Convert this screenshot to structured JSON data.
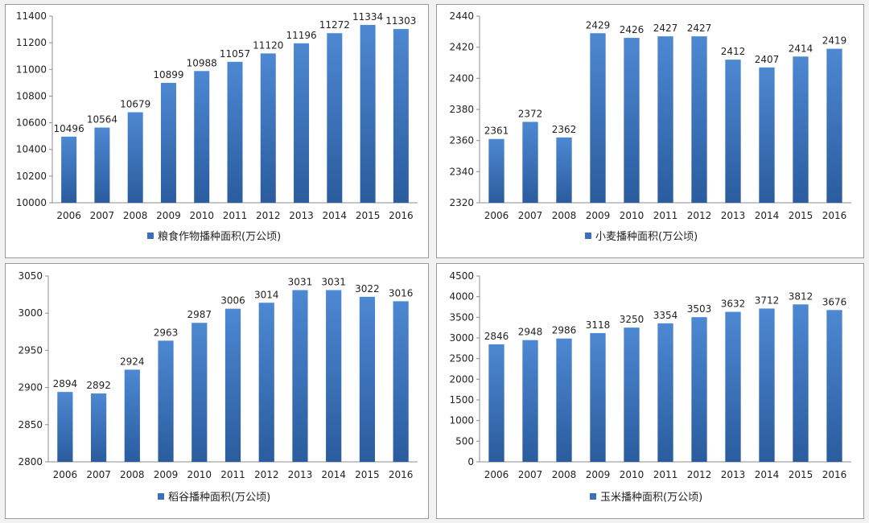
{
  "chart_data": [
    {
      "type": "bar",
      "title": "",
      "xlabel": "",
      "ylabel": "",
      "categories": [
        "2006",
        "2007",
        "2008",
        "2009",
        "2010",
        "2011",
        "2012",
        "2013",
        "2014",
        "2015",
        "2016"
      ],
      "series": [
        {
          "name": "粮食作物播种面积(万公顷)",
          "values": [
            10496,
            10564,
            10679,
            10899,
            10988,
            11057,
            11120,
            11196,
            11272,
            11334,
            11303
          ]
        }
      ],
      "ylim": [
        10000,
        11400
      ],
      "yticks": [
        10000,
        10200,
        10400,
        10600,
        10800,
        11000,
        11200,
        11400
      ],
      "grid": false,
      "legend": "bottom",
      "color": "#3a70b8"
    },
    {
      "type": "bar",
      "title": "",
      "xlabel": "",
      "ylabel": "",
      "categories": [
        "2006",
        "2007",
        "2008",
        "2009",
        "2010",
        "2011",
        "2012",
        "2013",
        "2014",
        "2015",
        "2016"
      ],
      "series": [
        {
          "name": "小麦播种面积(万公顷)",
          "values": [
            2361,
            2372,
            2362,
            2429,
            2426,
            2427,
            2427,
            2412,
            2407,
            2414,
            2419
          ]
        }
      ],
      "ylim": [
        2320,
        2440
      ],
      "yticks": [
        2320,
        2340,
        2360,
        2380,
        2400,
        2420,
        2440
      ],
      "grid": false,
      "legend": "bottom",
      "color": "#3a70b8"
    },
    {
      "type": "bar",
      "title": "",
      "xlabel": "",
      "ylabel": "",
      "categories": [
        "2006",
        "2007",
        "2008",
        "2009",
        "2010",
        "2011",
        "2012",
        "2013",
        "2014",
        "2015",
        "2016"
      ],
      "series": [
        {
          "name": "稻谷播种面积(万公顷)",
          "values": [
            2894,
            2892,
            2924,
            2963,
            2987,
            3006,
            3014,
            3031,
            3031,
            3022,
            3016
          ]
        }
      ],
      "ylim": [
        2800,
        3050
      ],
      "yticks": [
        2800,
        2850,
        2900,
        2950,
        3000,
        3050
      ],
      "grid": false,
      "legend": "bottom",
      "color": "#3a70b8"
    },
    {
      "type": "bar",
      "title": "",
      "xlabel": "",
      "ylabel": "",
      "categories": [
        "2006",
        "2007",
        "2008",
        "2009",
        "2010",
        "2011",
        "2012",
        "2013",
        "2014",
        "2015",
        "2016"
      ],
      "series": [
        {
          "name": "玉米播种面积(万公顷)",
          "values": [
            2846,
            2948,
            2986,
            3118,
            3250,
            3354,
            3503,
            3632,
            3712,
            3812,
            3676
          ]
        }
      ],
      "ylim": [
        0,
        4500
      ],
      "yticks": [
        0,
        500,
        1000,
        1500,
        2000,
        2500,
        3000,
        3500,
        4000,
        4500
      ],
      "grid": false,
      "legend": "bottom",
      "color": "#3a70b8"
    }
  ]
}
